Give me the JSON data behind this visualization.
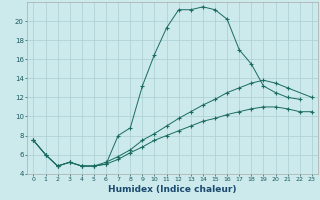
{
  "xlabel": "Humidex (Indice chaleur)",
  "bg_color": "#cce9ec",
  "grid_color": "#aacfd4",
  "line_color": "#1a6b60",
  "line1_x": [
    0,
    1,
    2,
    3,
    4,
    5,
    6,
    7,
    8,
    9,
    10,
    11,
    12,
    13,
    14,
    15,
    16,
    17,
    18,
    19,
    20,
    21,
    22
  ],
  "line1_y": [
    7.5,
    6.0,
    4.8,
    5.2,
    4.8,
    4.8,
    5.0,
    8.0,
    8.8,
    13.2,
    16.5,
    19.3,
    21.2,
    21.2,
    21.5,
    21.2,
    20.2,
    17.0,
    15.5,
    13.2,
    12.5,
    12.0,
    11.8
  ],
  "line2_x": [
    0,
    1,
    2,
    3,
    4,
    5,
    6,
    7,
    8,
    9,
    10,
    11,
    12,
    13,
    14,
    15,
    16,
    17,
    18,
    19,
    20,
    21,
    23
  ],
  "line2_y": [
    7.5,
    6.0,
    4.8,
    5.2,
    4.8,
    4.8,
    5.2,
    5.8,
    6.5,
    7.5,
    8.2,
    9.0,
    9.8,
    10.5,
    11.2,
    11.8,
    12.5,
    13.0,
    13.5,
    13.8,
    13.5,
    13.0,
    12.0
  ],
  "line3_x": [
    0,
    1,
    2,
    3,
    4,
    5,
    6,
    7,
    8,
    9,
    10,
    11,
    12,
    13,
    14,
    15,
    16,
    17,
    18,
    19,
    20,
    21,
    22,
    23
  ],
  "line3_y": [
    7.5,
    6.0,
    4.8,
    5.2,
    4.8,
    4.8,
    5.0,
    5.5,
    6.2,
    6.8,
    7.5,
    8.0,
    8.5,
    9.0,
    9.5,
    9.8,
    10.2,
    10.5,
    10.8,
    11.0,
    11.0,
    10.8,
    10.5,
    10.5
  ],
  "ylim": [
    4,
    22
  ],
  "xlim": [
    -0.5,
    23.5
  ],
  "yticks": [
    4,
    6,
    8,
    10,
    12,
    14,
    16,
    18,
    20
  ],
  "xticks": [
    0,
    1,
    2,
    3,
    4,
    5,
    6,
    7,
    8,
    9,
    10,
    11,
    12,
    13,
    14,
    15,
    16,
    17,
    18,
    19,
    20,
    21,
    22,
    23
  ]
}
